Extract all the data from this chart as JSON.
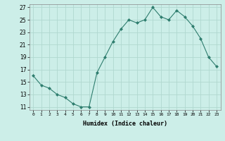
{
  "x": [
    0,
    1,
    2,
    3,
    4,
    5,
    6,
    7,
    8,
    9,
    10,
    11,
    12,
    13,
    14,
    15,
    16,
    17,
    18,
    19,
    20,
    21,
    22,
    23
  ],
  "y": [
    16.0,
    14.5,
    14.0,
    13.0,
    12.5,
    11.5,
    11.0,
    11.0,
    16.5,
    19.0,
    21.5,
    23.5,
    25.0,
    24.5,
    25.0,
    27.0,
    25.5,
    25.0,
    26.5,
    25.5,
    24.0,
    22.0,
    19.0,
    17.5
  ],
  "xlabel": "Humidex (Indice chaleur)",
  "ylim": [
    10.5,
    27.5
  ],
  "xlim": [
    -0.5,
    23.5
  ],
  "yticks": [
    11,
    13,
    15,
    17,
    19,
    21,
    23,
    25,
    27
  ],
  "xticks": [
    0,
    1,
    2,
    3,
    4,
    5,
    6,
    7,
    8,
    9,
    10,
    11,
    12,
    13,
    14,
    15,
    16,
    17,
    18,
    19,
    20,
    21,
    22,
    23
  ],
  "line_color": "#2e7d6e",
  "marker_color": "#2e7d6e",
  "bg_color": "#cceee8",
  "grid_color": "#b0d8d0",
  "plot_bg": "#cceee8"
}
